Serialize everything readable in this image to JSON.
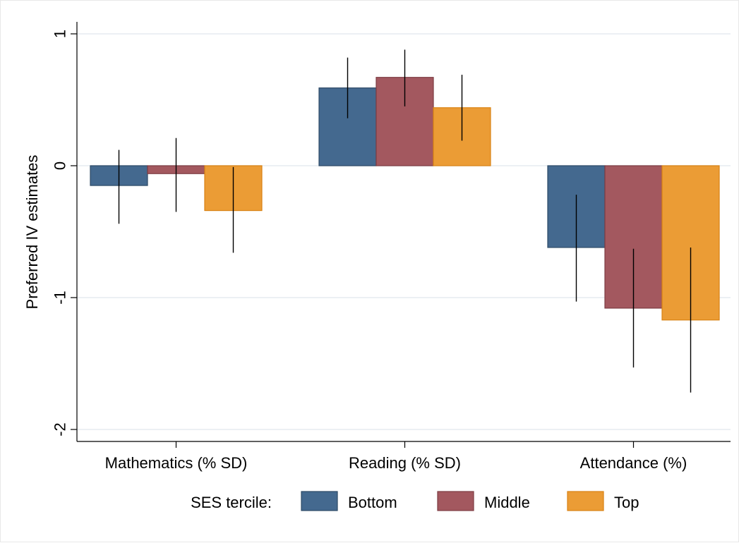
{
  "chart_data": {
    "type": "bar",
    "title": "",
    "xlabel": "",
    "ylabel": "Preferred IV estimates",
    "ylim": [
      -2,
      1
    ],
    "yticks": [
      1,
      0,
      -1,
      -2
    ],
    "ytick_labels": [
      "1",
      "0",
      "-1",
      "-2"
    ],
    "grid": true,
    "categories": [
      "Mathematics (% SD)",
      "Reading  (% SD)",
      "Attendance  (%)"
    ],
    "series": [
      {
        "name": "Bottom",
        "color": "#44698f",
        "values": [
          -0.15,
          0.59,
          -0.62
        ],
        "ci_low": [
          -0.44,
          0.36,
          -1.03
        ],
        "ci_high": [
          0.12,
          0.82,
          -0.22
        ]
      },
      {
        "name": "Middle",
        "color": "#a3585f",
        "values": [
          -0.06,
          0.67,
          -1.08
        ],
        "ci_low": [
          -0.35,
          0.45,
          -1.53
        ],
        "ci_high": [
          0.21,
          0.88,
          -0.63
        ]
      },
      {
        "name": "Top",
        "color": "#eb9c35",
        "values": [
          -0.34,
          0.44,
          -1.17
        ],
        "ci_low": [
          -0.66,
          0.19,
          -1.72
        ],
        "ci_high": [
          -0.01,
          0.69,
          -0.62
        ]
      }
    ],
    "legend_title": "SES tercile:",
    "legend_position": "bottom"
  }
}
